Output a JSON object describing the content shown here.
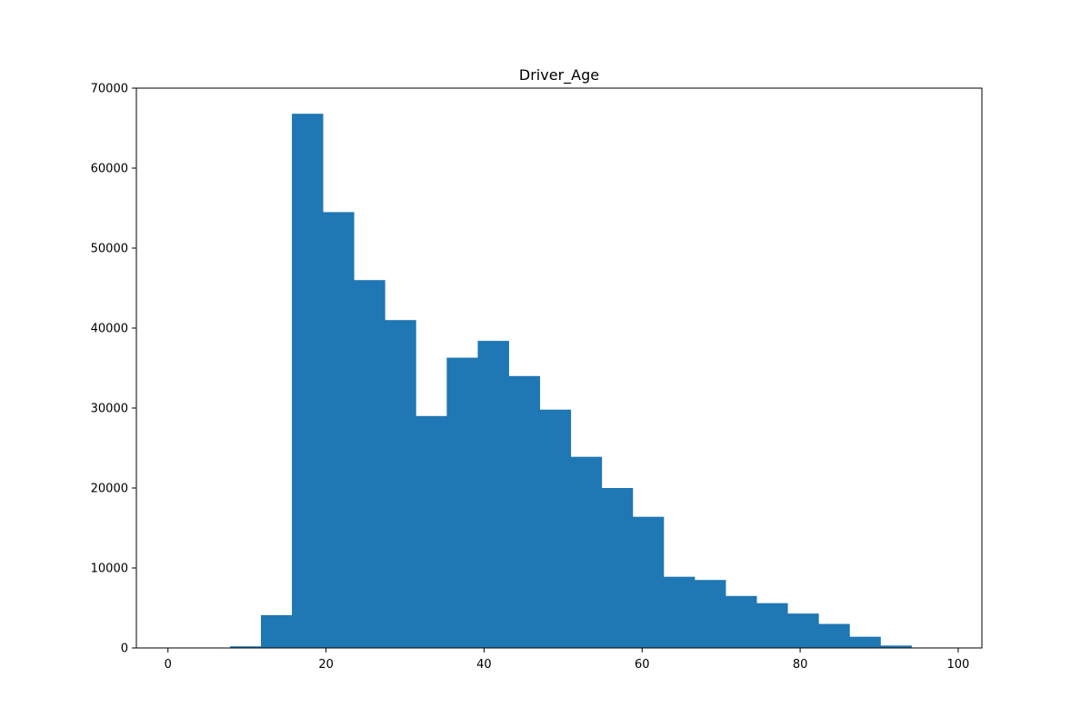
{
  "chart_data": {
    "type": "bar",
    "title": "Driver_Age",
    "xlabel": "",
    "ylabel": "",
    "xlim": [
      -4,
      103
    ],
    "ylim": [
      0,
      70000
    ],
    "x_ticks": [
      0,
      20,
      40,
      60,
      80,
      100
    ],
    "y_ticks": [
      0,
      10000,
      20000,
      30000,
      40000,
      50000,
      60000,
      70000
    ],
    "grid": false,
    "bar_color": "#1f77b4",
    "bins": [
      {
        "start": 0.0,
        "end": 3.92,
        "value": 0
      },
      {
        "start": 3.92,
        "end": 7.84,
        "value": 0
      },
      {
        "start": 7.84,
        "end": 11.76,
        "value": 200
      },
      {
        "start": 11.76,
        "end": 15.68,
        "value": 4100
      },
      {
        "start": 15.68,
        "end": 19.6,
        "value": 66800
      },
      {
        "start": 19.6,
        "end": 23.52,
        "value": 54500
      },
      {
        "start": 23.52,
        "end": 27.44,
        "value": 46000
      },
      {
        "start": 27.44,
        "end": 31.36,
        "value": 41000
      },
      {
        "start": 31.36,
        "end": 35.28,
        "value": 29000
      },
      {
        "start": 35.28,
        "end": 39.2,
        "value": 36300
      },
      {
        "start": 39.2,
        "end": 43.12,
        "value": 38400
      },
      {
        "start": 43.12,
        "end": 47.04,
        "value": 34000
      },
      {
        "start": 47.04,
        "end": 50.96,
        "value": 29800
      },
      {
        "start": 50.96,
        "end": 54.88,
        "value": 23900
      },
      {
        "start": 54.88,
        "end": 58.8,
        "value": 20000
      },
      {
        "start": 58.8,
        "end": 62.72,
        "value": 16400
      },
      {
        "start": 62.72,
        "end": 66.64,
        "value": 8900
      },
      {
        "start": 66.64,
        "end": 70.56,
        "value": 8500
      },
      {
        "start": 70.56,
        "end": 74.48,
        "value": 6500
      },
      {
        "start": 74.48,
        "end": 78.4,
        "value": 5600
      },
      {
        "start": 78.4,
        "end": 82.32,
        "value": 4300
      },
      {
        "start": 82.32,
        "end": 86.24,
        "value": 3000
      },
      {
        "start": 86.24,
        "end": 90.16,
        "value": 1400
      },
      {
        "start": 90.16,
        "end": 94.08,
        "value": 300
      },
      {
        "start": 94.08,
        "end": 98.0,
        "value": 0
      }
    ]
  }
}
